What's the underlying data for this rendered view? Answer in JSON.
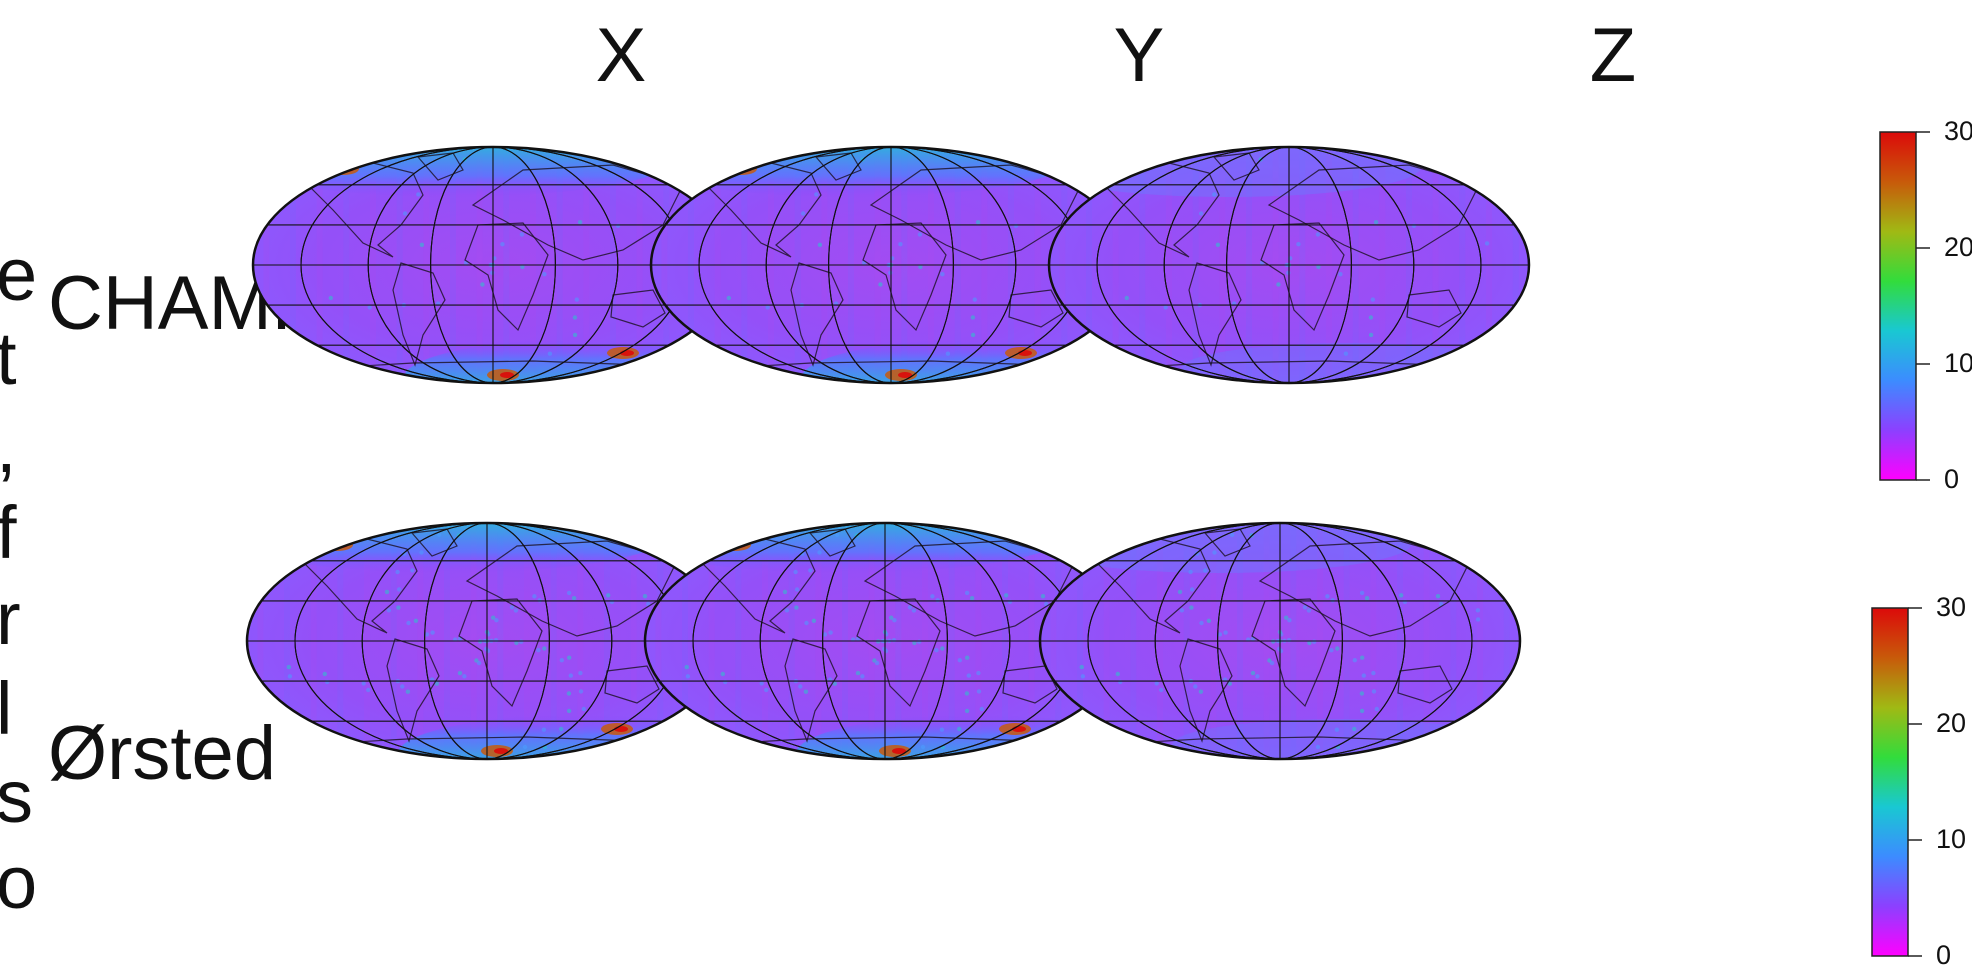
{
  "columns": [
    "X",
    "Y",
    "Z"
  ],
  "rows": [
    "CHAMP",
    "Ørsted"
  ],
  "left_clipped_text": [
    "e",
    "t",
    ",",
    "f",
    "r",
    "l",
    "s",
    "o"
  ],
  "colorbar": {
    "ticks": [
      "30",
      "20",
      "10",
      "0"
    ],
    "stops": [
      "#ff00ff",
      "#8c40ff",
      "#3c8cff",
      "#19c8d2",
      "#32dc3c",
      "#a0b914",
      "#c85a0a",
      "#dc0a0a"
    ]
  },
  "chart_data": [
    {
      "type": "heatmap",
      "title": "",
      "panels": [
        {
          "row": "CHAMP",
          "component": "X",
          "ticks_shown": [
            "30",
            "20",
            "10",
            "0"
          ],
          "clim": [
            0,
            30
          ],
          "high_regions": [
            "northern auroral zone",
            "southern auroral zone"
          ]
        },
        {
          "row": "CHAMP",
          "component": "Y",
          "ticks_shown": [
            "30",
            "20",
            "10",
            "0"
          ],
          "clim": [
            0,
            30
          ],
          "high_regions": [
            "northern auroral zone",
            "southern auroral zone"
          ]
        },
        {
          "row": "CHAMP",
          "component": "Z",
          "ticks_shown": [
            "30",
            "20",
            "10",
            "0"
          ],
          "clim": [
            0,
            30
          ],
          "high_regions": []
        },
        {
          "row": "Ørsted",
          "component": "X",
          "ticks_shown": [
            "30",
            "20",
            "10",
            "0"
          ],
          "clim": [
            0,
            30
          ],
          "high_regions": [
            "northern auroral zone",
            "southern auroral zone"
          ]
        },
        {
          "row": "Ørsted",
          "component": "Y",
          "ticks_shown": [
            "30",
            "20",
            "10",
            "0"
          ],
          "clim": [
            0,
            30
          ],
          "high_regions": [
            "northern auroral zone",
            "southern auroral zone"
          ]
        },
        {
          "row": "Ørsted",
          "component": "Z",
          "ticks_shown": [
            "30",
            "20",
            "10",
            "0"
          ],
          "clim": [
            0,
            30
          ],
          "high_regions": []
        }
      ],
      "colorbar_ticks": [
        30,
        20,
        10,
        0
      ]
    }
  ]
}
